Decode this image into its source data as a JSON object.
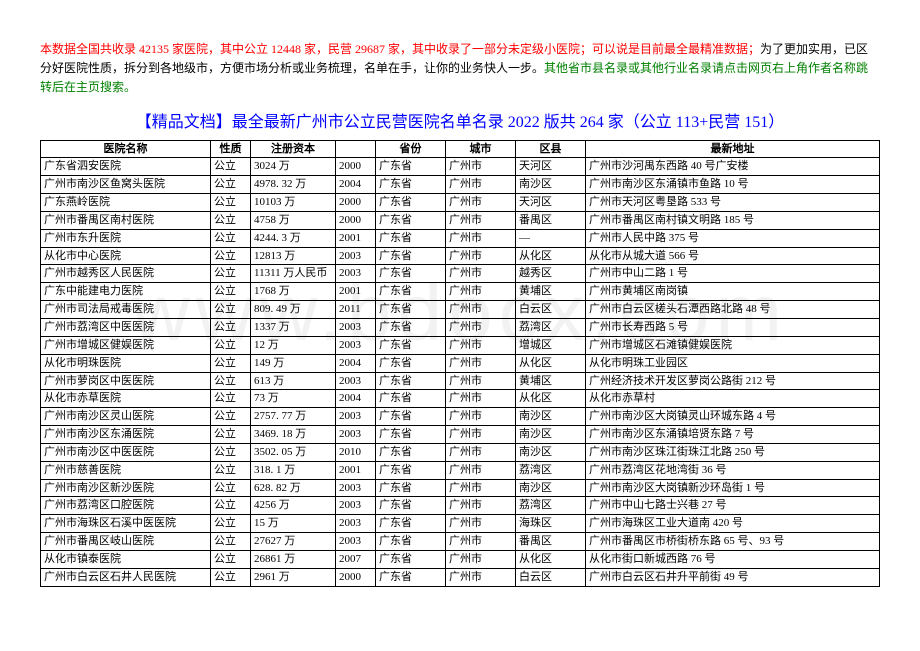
{
  "intro": {
    "part1_red": "本数据全国共收录 42135 家医院，其中公立 12448 家，民营 29687 家，其中收录了一部分未定级小医院；可以说是目前最全最精准数据；",
    "part2_black": "为了更加实用，已区分好医院性质，拆分到各地级市，方便市场分析或业务梳理，名单在手，让你的业务快人一步。",
    "part3_green": "其他省市县名录或其他行业名录请点击网页右上角作者名称跳转后在主页搜索。"
  },
  "title": "【精品文档】最全最新广州市公立民营医院名单名录 2022 版共 264 家（公立 113+民营 151）",
  "watermark": "www.bdocx.com",
  "table": {
    "columns": [
      "医院名称",
      "性质",
      "注册资本",
      "",
      "省份",
      "城市",
      "区县",
      "最新地址"
    ],
    "rows": [
      [
        "广东省泗安医院",
        "公立",
        "3024 万",
        "2000",
        "广东省",
        "广州市",
        "天河区",
        "广州市沙河禺东西路 40 号广安楼"
      ],
      [
        "广州市南沙区鱼窝头医院",
        "公立",
        "4978. 32 万",
        "2004",
        "广东省",
        "广州市",
        "南沙区",
        "广州市南沙区东涌镇市鱼路 10 号"
      ],
      [
        "广东燕岭医院",
        "公立",
        "10103 万",
        "2000",
        "广东省",
        "广州市",
        "天河区",
        "广州市天河区粤垦路 533 号"
      ],
      [
        "广州市番禺区南村医院",
        "公立",
        "4758 万",
        "2000",
        "广东省",
        "广州市",
        "番禺区",
        "广州市番禺区南村镇文明路 185 号"
      ],
      [
        "广州市东升医院",
        "公立",
        "4244. 3 万",
        "2001",
        "广东省",
        "广州市",
        "—",
        "广州市人民中路 375 号"
      ],
      [
        "从化市中心医院",
        "公立",
        "12813 万",
        "2003",
        "广东省",
        "广州市",
        "从化区",
        "从化市从城大道 566 号"
      ],
      [
        "广州市越秀区人民医院",
        "公立",
        "11311 万人民币",
        "2003",
        "广东省",
        "广州市",
        "越秀区",
        "广州市中山二路 1 号"
      ],
      [
        "广东中能建电力医院",
        "公立",
        "1768 万",
        "2001",
        "广东省",
        "广州市",
        "黄埔区",
        "广州市黄埔区南岗镇"
      ],
      [
        "广州市司法局戒毒医院",
        "公立",
        "809. 49 万",
        "2011",
        "广东省",
        "广州市",
        "白云区",
        "广州市白云区槎头石潭西路北路 48 号"
      ],
      [
        "广州市荔湾区中医医院",
        "公立",
        "1337 万",
        "2003",
        "广东省",
        "广州市",
        "荔湾区",
        "广州市长寿西路 5 号"
      ],
      [
        "广州市增城区健娱医院",
        "公立",
        "12 万",
        "2003",
        "广东省",
        "广州市",
        "增城区",
        "广州市增城区石滩镇健娱医院"
      ],
      [
        "从化市明珠医院",
        "公立",
        "149 万",
        "2004",
        "广东省",
        "广州市",
        "从化区",
        "从化市明珠工业园区"
      ],
      [
        "广州市萝岗区中医医院",
        "公立",
        "613 万",
        "2003",
        "广东省",
        "广州市",
        "黄埔区",
        "广州经济技术开发区萝岗公路街 212 号"
      ],
      [
        "从化市赤草医院",
        "公立",
        "73 万",
        "2004",
        "广东省",
        "广州市",
        "从化区",
        "从化市赤草村"
      ],
      [
        "广州市南沙区灵山医院",
        "公立",
        "2757. 77 万",
        "2003",
        "广东省",
        "广州市",
        "南沙区",
        "广州市南沙区大岗镇灵山环城东路 4 号"
      ],
      [
        "广州市南沙区东涌医院",
        "公立",
        "3469. 18 万",
        "2003",
        "广东省",
        "广州市",
        "南沙区",
        "广州市南沙区东涌镇培贤东路 7 号"
      ],
      [
        "广州市南沙区中医医院",
        "公立",
        "3502. 05 万",
        "2010",
        "广东省",
        "广州市",
        "南沙区",
        "广州市南沙区珠江街珠江北路 250 号"
      ],
      [
        "广州市慈善医院",
        "公立",
        "318. 1 万",
        "2001",
        "广东省",
        "广州市",
        "荔湾区",
        "广州市荔湾区花地湾街 36 号"
      ],
      [
        "广州市南沙区新沙医院",
        "公立",
        "628. 82 万",
        "2003",
        "广东省",
        "广州市",
        "南沙区",
        "广州市南沙区大岗镇新沙环岛街 1 号"
      ],
      [
        "广州市荔湾区口腔医院",
        "公立",
        "4256 万",
        "2003",
        "广东省",
        "广州市",
        "荔湾区",
        "广州市中山七路士兴巷 27 号"
      ],
      [
        "广州市海珠区石溪中医医院",
        "公立",
        "15 万",
        "2003",
        "广东省",
        "广州市",
        "海珠区",
        "广州市海珠区工业大道南 420 号"
      ],
      [
        "广州市番禺区岐山医院",
        "公立",
        "27627 万",
        "2003",
        "广东省",
        "广州市",
        "番禺区",
        "广州市番禺区市桥街桥东路 65 号、93 号"
      ],
      [
        "从化市镇泰医院",
        "公立",
        "26861 万",
        "2007",
        "广东省",
        "广州市",
        "从化区",
        "从化市街口新城西路 76 号"
      ],
      [
        "广州市白云区石井人民医院",
        "公立",
        "2961 万",
        "2000",
        "广东省",
        "广州市",
        "白云区",
        "广州市白云区石井升平前街 49 号"
      ]
    ]
  }
}
